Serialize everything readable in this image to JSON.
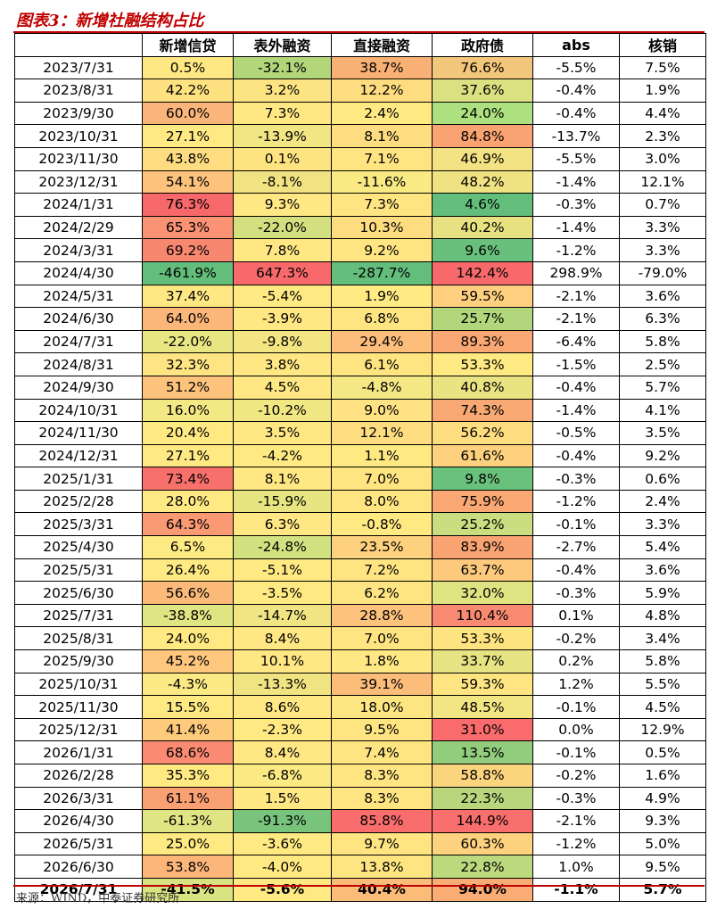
{
  "title": "图表3：新增社融结构占比",
  "source": "来源：WIND，中泰证券研究所",
  "table": {
    "headers": [
      "",
      "新增信贷",
      "表外融资",
      "直接融资",
      "政府债",
      "abs",
      "核销"
    ],
    "rows": [
      [
        "2023/7/31",
        "0.5%",
        "-32.1%",
        "38.7%",
        "76.6%",
        "-5.5%",
        "7.5%"
      ],
      [
        "2023/8/31",
        "42.2%",
        "3.2%",
        "12.2%",
        "37.6%",
        "-0.4%",
        "1.9%"
      ],
      [
        "2023/9/30",
        "60.0%",
        "7.3%",
        "2.4%",
        "24.0%",
        "-0.4%",
        "4.4%"
      ],
      [
        "2023/10/31",
        "27.1%",
        "-13.9%",
        "8.1%",
        "84.8%",
        "-13.7%",
        "2.3%"
      ],
      [
        "2023/11/30",
        "43.8%",
        "0.1%",
        "7.1%",
        "46.9%",
        "-5.5%",
        "3.0%"
      ],
      [
        "2023/12/31",
        "54.1%",
        "-8.1%",
        "-11.6%",
        "48.2%",
        "-1.4%",
        "12.1%"
      ],
      [
        "2024/1/31",
        "76.3%",
        "9.3%",
        "7.3%",
        "4.6%",
        "-0.3%",
        "0.7%"
      ],
      [
        "2024/2/29",
        "65.3%",
        "-22.0%",
        "10.3%",
        "40.2%",
        "-1.4%",
        "3.3%"
      ],
      [
        "2024/3/31",
        "69.2%",
        "7.8%",
        "9.2%",
        "9.6%",
        "-1.2%",
        "3.3%"
      ],
      [
        "2024/4/30",
        "-461.9%",
        "647.3%",
        "-287.7%",
        "142.4%",
        "298.9%",
        "-79.0%"
      ],
      [
        "2024/5/31",
        "37.4%",
        "-5.4%",
        "1.9%",
        "59.5%",
        "-2.1%",
        "3.6%"
      ],
      [
        "2024/6/30",
        "64.0%",
        "-3.9%",
        "6.8%",
        "25.7%",
        "-2.1%",
        "6.3%"
      ],
      [
        "2024/7/31",
        "-22.0%",
        "-9.8%",
        "29.4%",
        "89.3%",
        "-6.4%",
        "5.8%"
      ],
      [
        "2024/8/31",
        "32.3%",
        "3.8%",
        "6.1%",
        "53.3%",
        "-1.5%",
        "2.5%"
      ],
      [
        "2024/9/30",
        "51.2%",
        "4.5%",
        "-4.8%",
        "40.8%",
        "-0.4%",
        "5.7%"
      ],
      [
        "2024/10/31",
        "16.0%",
        "-10.2%",
        "9.0%",
        "74.3%",
        "-1.4%",
        "4.1%"
      ],
      [
        "2024/11/30",
        "20.4%",
        "3.5%",
        "12.1%",
        "56.2%",
        "-0.5%",
        "3.5%"
      ],
      [
        "2024/12/31",
        "27.1%",
        "-4.2%",
        "1.1%",
        "61.6%",
        "-0.4%",
        "9.2%"
      ],
      [
        "2025/1/31",
        "73.4%",
        "8.1%",
        "7.0%",
        "9.8%",
        "-0.3%",
        "0.6%"
      ],
      [
        "2025/2/28",
        "28.0%",
        "-15.9%",
        "8.0%",
        "75.9%",
        "-1.2%",
        "2.4%"
      ],
      [
        "2025/3/31",
        "64.3%",
        "6.3%",
        "-0.8%",
        "25.2%",
        "-0.1%",
        "3.3%"
      ],
      [
        "2025/4/30",
        "6.5%",
        "-24.8%",
        "23.5%",
        "83.9%",
        "-2.7%",
        "5.4%"
      ],
      [
        "2025/5/31",
        "26.4%",
        "-5.1%",
        "7.2%",
        "63.7%",
        "-0.4%",
        "3.6%"
      ],
      [
        "2025/6/30",
        "56.6%",
        "-3.5%",
        "6.2%",
        "32.0%",
        "-0.3%",
        "5.9%"
      ],
      [
        "2025/7/31",
        "-38.8%",
        "-14.7%",
        "28.8%",
        "110.4%",
        "0.1%",
        "4.8%"
      ],
      [
        "2025/8/31",
        "24.0%",
        "8.4%",
        "7.0%",
        "53.3%",
        "-0.2%",
        "3.4%"
      ],
      [
        "2025/9/30",
        "45.2%",
        "10.1%",
        "1.8%",
        "33.7%",
        "0.2%",
        "5.8%"
      ],
      [
        "2025/10/31",
        "-4.3%",
        "-13.3%",
        "39.1%",
        "59.3%",
        "1.2%",
        "5.5%"
      ],
      [
        "2025/11/30",
        "15.5%",
        "8.6%",
        "18.0%",
        "48.5%",
        "-0.1%",
        "4.5%"
      ],
      [
        "2025/12/31",
        "41.4%",
        "-2.3%",
        "9.5%",
        "31.0%",
        "0.0%",
        "12.9%"
      ],
      [
        "2026/1/31",
        "68.6%",
        "8.4%",
        "7.4%",
        "13.5%",
        "-0.1%",
        "0.5%"
      ],
      [
        "2026/2/28",
        "35.3%",
        "-6.8%",
        "8.3%",
        "58.8%",
        "-0.2%",
        "1.6%"
      ],
      [
        "2026/3/31",
        "61.1%",
        "1.5%",
        "8.3%",
        "22.3%",
        "-0.3%",
        "4.9%"
      ],
      [
        "2026/4/30",
        "-61.3%",
        "-91.3%",
        "85.8%",
        "144.9%",
        "-2.1%",
        "9.3%"
      ],
      [
        "2026/5/31",
        "25.0%",
        "-3.6%",
        "9.7%",
        "60.3%",
        "-1.2%",
        "5.0%"
      ],
      [
        "2026/6/30",
        "53.8%",
        "-4.0%",
        "13.8%",
        "22.8%",
        "1.0%",
        "9.5%"
      ],
      [
        "2026/7/31",
        "-41.5%",
        "-5.6%",
        "40.4%",
        "94.0%",
        "-1.1%",
        "5.7%"
      ]
    ],
    "colors": [
      [
        "#ffe884",
        "#b3d67b",
        "#f9b074",
        "#f3c77b"
      ],
      [
        "#fee281",
        "#fde482",
        "#fedc80",
        "#dbe081"
      ],
      [
        "#fbb57a",
        "#ffe784",
        "#fee983",
        "#ade07f"
      ],
      [
        "#fee983",
        "#f2e584",
        "#fedc80",
        "#f9a372"
      ],
      [
        "#fedd81",
        "#fee481",
        "#fee582",
        "#f3e283"
      ],
      [
        "#fdc27c",
        "#f1e382",
        "#f9ea83",
        "#efe282"
      ],
      [
        "#f7686a",
        "#ffe784",
        "#fee582",
        "#63be7b"
      ],
      [
        "#fa9273",
        "#d4df80",
        "#fedc80",
        "#e7e182"
      ],
      [
        "#f88770",
        "#ffe784",
        "#fee582",
        "#68c07c"
      ],
      [
        "#63be7b",
        "#f8696b",
        "#63be7b",
        "#f8696b"
      ],
      [
        "#ffe784",
        "#fee983",
        "#ffea84",
        "#fecf7e"
      ],
      [
        "#fbb67a",
        "#ffe783",
        "#fee582",
        "#b1d67b"
      ],
      [
        "#e8e683",
        "#f2e582",
        "#fdbe7c",
        "#f9a773"
      ],
      [
        "#fee482",
        "#ffe784",
        "#fee582",
        "#fee983"
      ],
      [
        "#fdc37c",
        "#ffe784",
        "#f4e884",
        "#e9e382"
      ],
      [
        "#f3e984",
        "#f1e883",
        "#fee283",
        "#f8a873"
      ],
      [
        "#fee982",
        "#ffe784",
        "#fedd81",
        "#fedd81"
      ],
      [
        "#fee983",
        "#fee983",
        "#fee983",
        "#fdd17e"
      ],
      [
        "#f8706c",
        "#ffe784",
        "#fee582",
        "#6ac17c"
      ],
      [
        "#fee983",
        "#e6e582",
        "#fee582",
        "#f9a773"
      ],
      [
        "#fa9a75",
        "#ffe784",
        "#fee983",
        "#cadd80"
      ],
      [
        "#feea83",
        "#d3e281",
        "#fdd17e",
        "#f9a372"
      ],
      [
        "#fee983",
        "#fee983",
        "#fee582",
        "#fdc97d"
      ],
      [
        "#fbb97a",
        "#fee983",
        "#fee582",
        "#dfe382"
      ],
      [
        "#e1e482",
        "#f1e583",
        "#fdc27c",
        "#f88a72"
      ],
      [
        "#fee982",
        "#ffe784",
        "#fee582",
        "#fde481"
      ],
      [
        "#fec77d",
        "#ffe784",
        "#ffe884",
        "#e6e382"
      ],
      [
        "#fbe984",
        "#f0e482",
        "#fcbc7a",
        "#fee582"
      ],
      [
        "#fee983",
        "#ffe784",
        "#fde582",
        "#f2e584"
      ],
      [
        "#fecb7d",
        "#fee983",
        "#fee582",
        "#f96b6c"
      ],
      [
        "#fa8a72",
        "#ffe784",
        "#fee582",
        "#92cd7e"
      ],
      [
        "#fee983",
        "#fbe983",
        "#fee582",
        "#fbd47e"
      ],
      [
        "#faa174",
        "#ffe784",
        "#fee582",
        "#b9d67d"
      ],
      [
        "#e1e482",
        "#79c47d",
        "#f96d6c",
        "#f96f6d"
      ],
      [
        "#fee982",
        "#fee983",
        "#fee582",
        "#fdd27e"
      ],
      [
        "#fcb67a",
        "#fee983",
        "#fee582",
        "#bdd97e"
      ],
      [
        "#d8e381",
        "#fee983",
        "#fbbb79",
        "#f9ad74"
      ]
    ]
  }
}
